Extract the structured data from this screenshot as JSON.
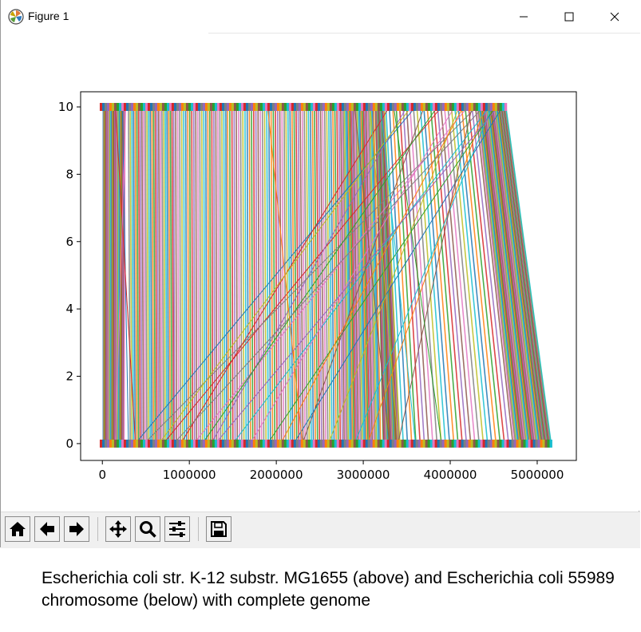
{
  "window": {
    "title": "Figure 1",
    "minimize_glyph": "—",
    "maximize_glyph": "☐",
    "close_glyph": "✕"
  },
  "toolbar": {
    "buttons": [
      {
        "name": "home-button",
        "icon": "home-icon"
      },
      {
        "name": "back-button",
        "icon": "arrow-left-icon"
      },
      {
        "name": "forward-button",
        "icon": "arrow-right-icon"
      },
      {
        "name": "pan-button",
        "icon": "move-icon"
      },
      {
        "name": "zoom-button",
        "icon": "magnifier-icon"
      },
      {
        "name": "configure-subplots-button",
        "icon": "sliders-icon"
      },
      {
        "name": "save-button",
        "icon": "floppy-disk-icon"
      }
    ]
  },
  "caption": "Escherichia coli str. K-12 substr. MG1655 (above) and Escherichia coli 55989 chromosome (below) with complete genome",
  "chart_data": {
    "type": "line",
    "title": "",
    "xlabel": "",
    "ylabel": "",
    "xlim": [
      -250000,
      5450000
    ],
    "ylim": [
      -0.5,
      10.45
    ],
    "xticks": [
      0,
      1000000,
      2000000,
      3000000,
      4000000,
      5000000
    ],
    "xtick_labels": [
      "0",
      "1000000",
      "2000000",
      "3000000",
      "4000000",
      "5000000"
    ],
    "yticks": [
      0,
      2,
      4,
      6,
      8,
      10
    ],
    "ytick_labels": [
      "0",
      "2",
      "4",
      "6",
      "8",
      "10"
    ],
    "grid": false,
    "genomes": [
      {
        "role": "upper genome track",
        "y": 10,
        "start": -30000,
        "end": 4650000
      },
      {
        "role": "lower genome track",
        "y": 0,
        "start": -30000,
        "end": 5170000
      }
    ],
    "colinear_blocks": [
      {
        "x_top": [
          10000,
          260000
        ],
        "x_bottom": [
          10000,
          250000
        ]
      },
      {
        "x_top": [
          300000,
          800000
        ],
        "x_bottom": [
          320000,
          820000
        ]
      },
      {
        "x_top": [
          820000,
          1420000
        ],
        "x_bottom": [
          830000,
          1430000
        ]
      },
      {
        "x_top": [
          1440000,
          2090000
        ],
        "x_bottom": [
          1450000,
          2110000
        ]
      },
      {
        "x_top": [
          2110000,
          2720000
        ],
        "x_bottom": [
          2140000,
          2760000
        ]
      },
      {
        "x_top": [
          2740000,
          3120000
        ],
        "x_bottom": [
          2780000,
          3200000
        ]
      },
      {
        "x_top": [
          3140000,
          3240000
        ],
        "x_bottom": [
          3230000,
          3420000
        ]
      },
      {
        "x_top": [
          3260000,
          4290000
        ],
        "x_bottom": [
          3460000,
          4720000
        ]
      },
      {
        "x_top": [
          4310000,
          4560000
        ],
        "x_bottom": [
          4740000,
          5050000
        ]
      },
      {
        "x_top": [
          4570000,
          4640000
        ],
        "x_bottom": [
          5060000,
          5160000
        ]
      }
    ],
    "crossing_links": [
      [
        3600000,
        380000
      ],
      [
        3900000,
        700000
      ],
      [
        4200000,
        1050000
      ],
      [
        4450000,
        1500000
      ],
      [
        4520000,
        1900000
      ],
      [
        3700000,
        2300000
      ],
      [
        4100000,
        2600000
      ],
      [
        4400000,
        3050000
      ],
      [
        3500000,
        1250000
      ],
      [
        4300000,
        480000
      ],
      [
        4600000,
        2200000
      ],
      [
        3300000,
        900000
      ],
      [
        4050000,
        1700000
      ],
      [
        4480000,
        2900000
      ],
      [
        3850000,
        1150000
      ],
      [
        4250000,
        3400000
      ],
      [
        3550000,
        650000
      ],
      [
        4150000,
        2050000
      ],
      [
        4550000,
        1300000
      ],
      [
        4380000,
        820000
      ],
      [
        230000,
        300000
      ],
      [
        150000,
        380000
      ],
      [
        270000,
        150000
      ],
      [
        3200000,
        3600000
      ],
      [
        3350000,
        3900000
      ],
      [
        2900000,
        3300000
      ],
      [
        3080000,
        3400000
      ],
      [
        1900000,
        2300000
      ]
    ]
  }
}
